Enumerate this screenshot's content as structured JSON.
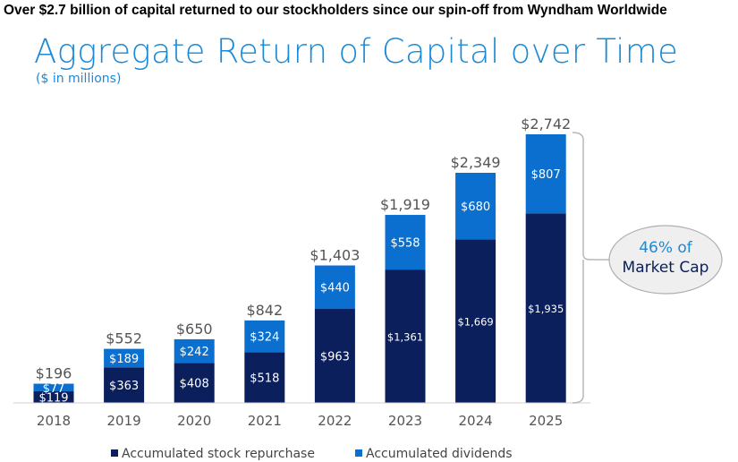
{
  "headline": "Over $2.7 billion of capital returned to our stockholders since our spin-off from Wyndham Worldwide",
  "chart_data": {
    "type": "bar",
    "stacked": true,
    "title": "Aggregate Return of Capital over Time",
    "subtitle": "($ in millions)",
    "categories": [
      "2018",
      "2019",
      "2020",
      "2021",
      "2022",
      "2023",
      "2024",
      "2025"
    ],
    "series": [
      {
        "name": "Accumulated stock repurchase",
        "color": "#0a1f5c",
        "values": [
          119,
          363,
          408,
          518,
          963,
          1361,
          1669,
          1935
        ],
        "labels": [
          "$119",
          "$363",
          "$408",
          "$518",
          "$963",
          "$1,361",
          "$1,669",
          "$1,935"
        ]
      },
      {
        "name": "Accumulated dividends",
        "color": "#0b6fcf",
        "values": [
          77,
          189,
          242,
          324,
          440,
          558,
          680,
          807
        ],
        "labels": [
          "$77",
          "$189",
          "$242",
          "$324",
          "$440",
          "$558",
          "$680",
          "$807"
        ]
      }
    ],
    "totals": [
      196,
      552,
      650,
      842,
      1403,
      1919,
      2349,
      2742
    ],
    "total_labels": [
      "$196",
      "$552",
      "$650",
      "$842",
      "$1,403",
      "$1,919",
      "$2,349",
      "$2,742"
    ],
    "ylim": [
      0,
      2742
    ],
    "grid": false,
    "legend": "bottom",
    "annotation": {
      "line1": "46% of",
      "line2": "Market Cap"
    }
  }
}
